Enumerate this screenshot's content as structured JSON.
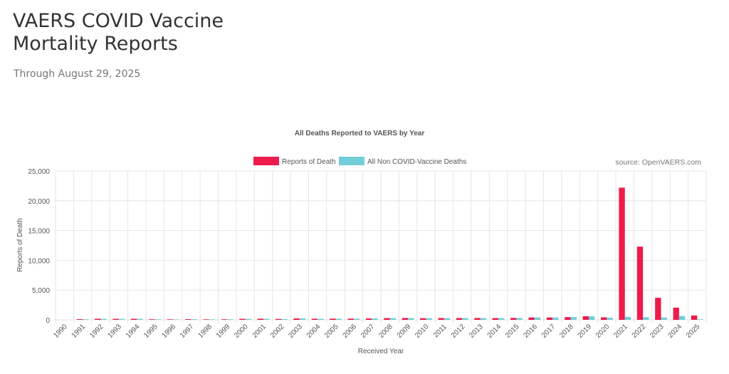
{
  "page": {
    "title_line1": "VAERS COVID Vaccine",
    "title_line2": "Mortality Reports",
    "subtitle": "Through August 29, 2025"
  },
  "colors": {
    "deaths": "#ee1b4b",
    "non_covid": "#72ced8",
    "grid": "#e6e6e6",
    "axis": "#cccccc"
  },
  "chart_data": {
    "type": "bar",
    "title": "All Deaths Reported to VAERS by Year",
    "source": "source: OpenVAERS.com",
    "xlabel": "Received Year",
    "ylabel": "Reports of Death",
    "ylim": [
      0,
      25000
    ],
    "yticks": [
      "0",
      "5,000",
      "10,000",
      "15,000",
      "20,000",
      "25,000"
    ],
    "ytick_values": [
      0,
      5000,
      10000,
      15000,
      20000,
      25000
    ],
    "legend_position": "top-center",
    "grid": true,
    "categories": [
      "1990",
      "1991",
      "1992",
      "1993",
      "1994",
      "1995",
      "1996",
      "1997",
      "1998",
      "1999",
      "2000",
      "2001",
      "2002",
      "2003",
      "2004",
      "2005",
      "2006",
      "2007",
      "2008",
      "2009",
      "2010",
      "2011",
      "2012",
      "2013",
      "2014",
      "2015",
      "2016",
      "2017",
      "2018",
      "2019",
      "2020",
      "2021",
      "2022",
      "2023",
      "2024",
      "2025"
    ],
    "series": [
      {
        "name": "Reports of Death",
        "values": [
          0,
          120,
          190,
          170,
          180,
          100,
          90,
          120,
          90,
          100,
          170,
          200,
          150,
          250,
          190,
          210,
          210,
          240,
          300,
          310,
          280,
          300,
          300,
          310,
          300,
          320,
          400,
          400,
          460,
          600,
          420,
          22200,
          12300,
          3700,
          2050,
          730
        ]
      },
      {
        "name": "All Non COVID-Vaccine Deaths",
        "values": [
          0,
          110,
          170,
          160,
          170,
          90,
          80,
          110,
          90,
          100,
          160,
          190,
          140,
          240,
          180,
          200,
          200,
          230,
          290,
          300,
          270,
          290,
          290,
          300,
          290,
          310,
          400,
          400,
          460,
          590,
          370,
          500,
          450,
          400,
          650,
          100
        ]
      }
    ]
  }
}
